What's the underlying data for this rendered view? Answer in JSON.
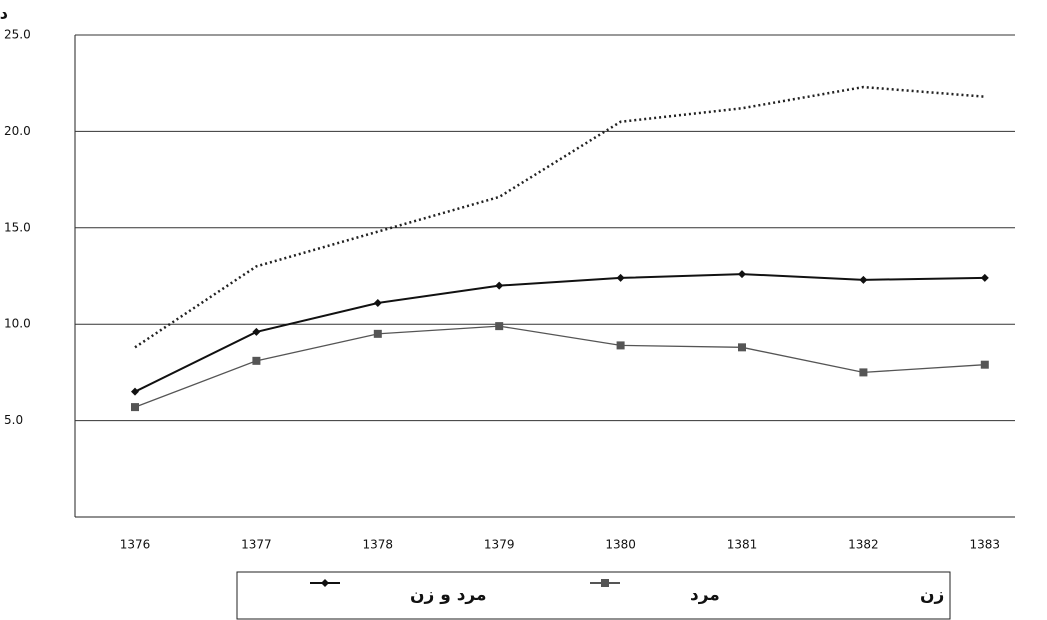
{
  "chart_data": {
    "type": "line",
    "y_label": "درصد",
    "categories": [
      "1376",
      "1377",
      "1378",
      "1379",
      "1380",
      "1381",
      "1382",
      "1383"
    ],
    "series": [
      {
        "name": "مرد و زن",
        "color": "#111111",
        "marker": "diamond",
        "dash": "solid",
        "values": [
          6.5,
          9.6,
          11.1,
          12.0,
          12.4,
          12.6,
          12.3,
          12.4
        ]
      },
      {
        "name": "مرد",
        "color": "#555555",
        "marker": "square",
        "dash": "solid",
        "values": [
          5.7,
          8.1,
          9.5,
          9.9,
          8.9,
          8.8,
          7.5,
          7.9
        ]
      },
      {
        "name": "زن",
        "color": "#222222",
        "marker": "none",
        "dash": "dotted",
        "values": [
          8.8,
          13.0,
          14.8,
          16.6,
          20.5,
          21.2,
          22.3,
          21.8
        ]
      }
    ],
    "ylim": [
      0,
      25
    ],
    "yticks": [
      {
        "value": 5,
        "label": "5.0"
      },
      {
        "value": 10,
        "label": "10.0"
      },
      {
        "value": 15,
        "label": "15.0"
      },
      {
        "value": 20,
        "label": "20.0"
      },
      {
        "value": 25,
        "label": "25.0"
      }
    ],
    "grid": true
  }
}
